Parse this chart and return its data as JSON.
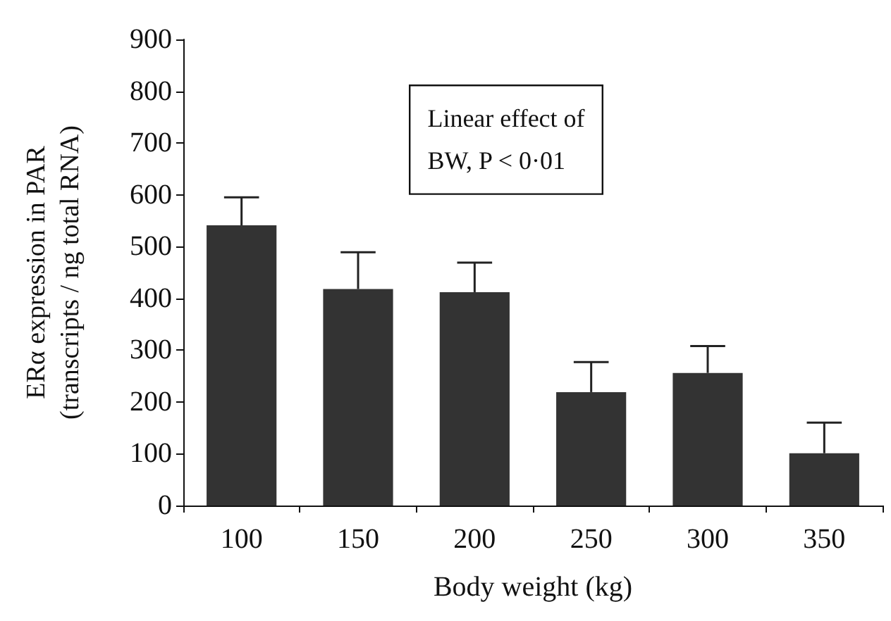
{
  "chart_data": {
    "type": "bar",
    "xlabel": "Body weight (kg)",
    "ylabel": "ERα expression in PAR\n(transcripts / ng total RNA)",
    "categories": [
      "100",
      "150",
      "200",
      "250",
      "300",
      "350"
    ],
    "values": [
      541,
      418,
      412,
      219,
      256,
      101
    ],
    "errors": [
      [
        541,
        595
      ],
      [
        418,
        489
      ],
      [
        412,
        469
      ],
      [
        219,
        277
      ],
      [
        256,
        308
      ],
      [
        101,
        160
      ]
    ],
    "color": "#333333",
    "ylim": [
      0,
      900
    ],
    "yticks": [
      0,
      100,
      200,
      300,
      400,
      500,
      600,
      700,
      800,
      900
    ],
    "grid": false,
    "annotations": [
      "Linear effect of\nBW, P < 0·01"
    ]
  }
}
